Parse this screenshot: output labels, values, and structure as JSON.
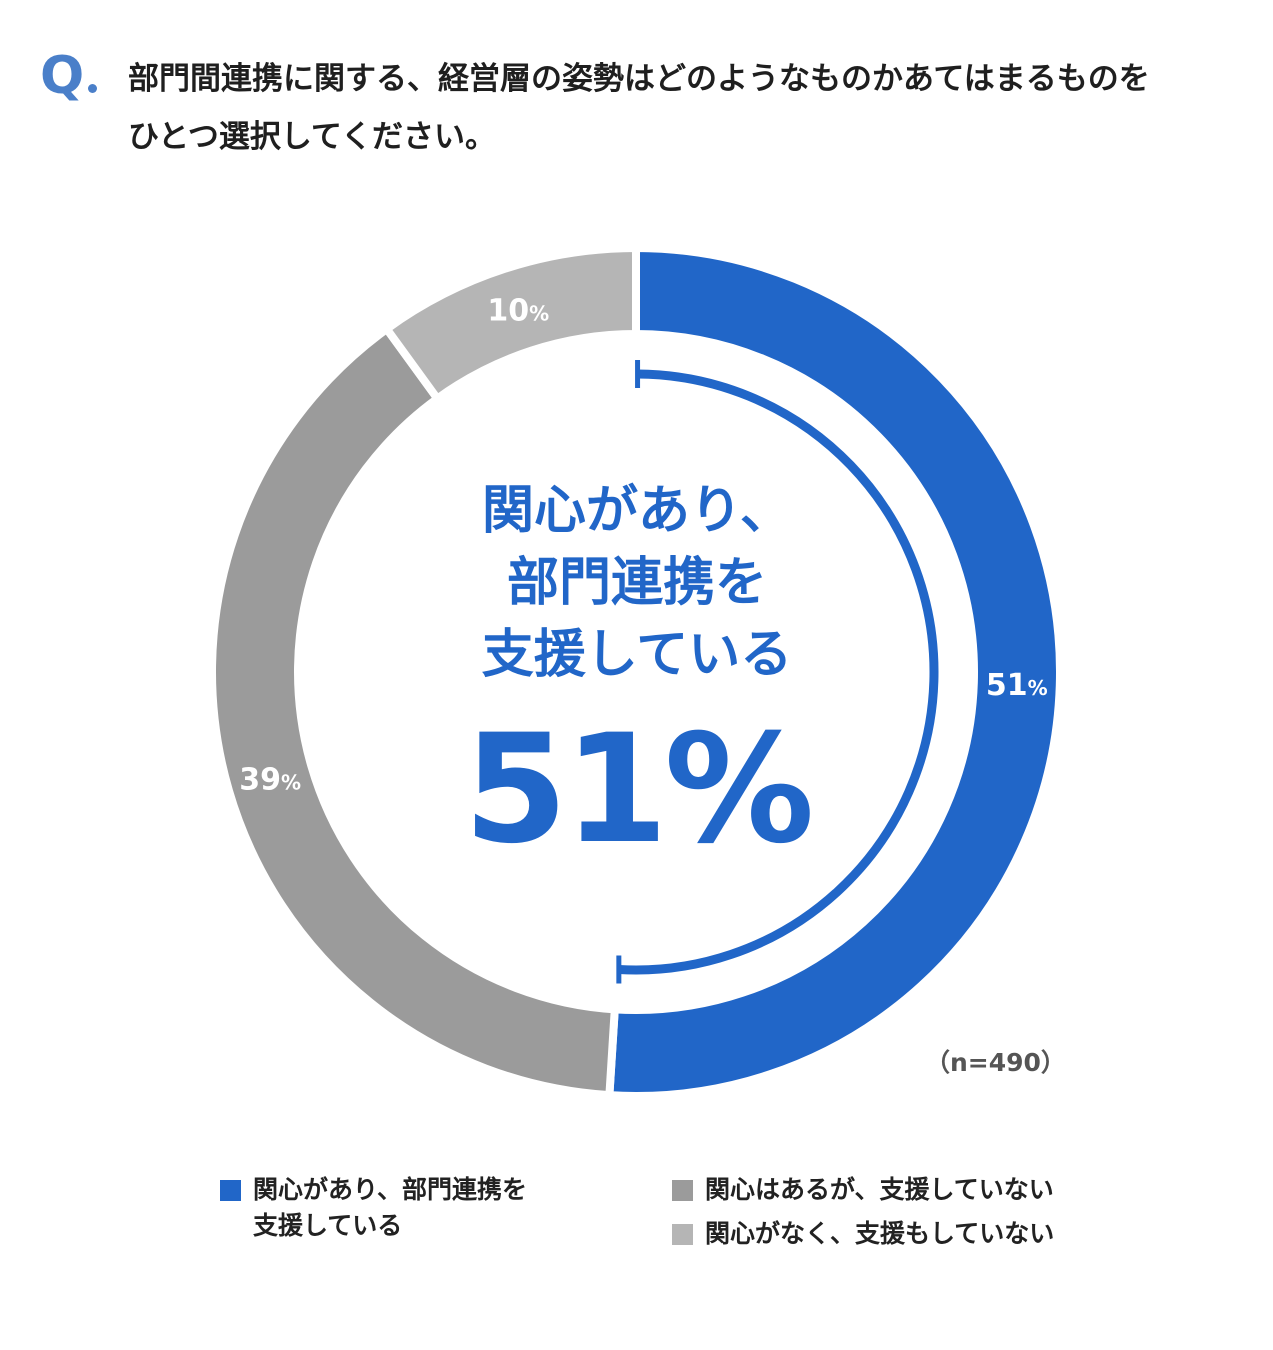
{
  "question": {
    "mark": "Q",
    "line1": "部門間連携に関する、経営層の姿勢はどのようなものかあてはまるものを",
    "line2": "ひとつ選択してください。"
  },
  "center": {
    "line1": "関心があり、",
    "line2": "部門連携を",
    "line3": "支援している",
    "value": "51%"
  },
  "sample_size": "（n=490）",
  "chart_data": {
    "type": "pie",
    "variant": "donut",
    "categories": [
      "関心があり、部門連携を支援している",
      "関心はあるが、支援していない",
      "関心がなく、支援もしていない"
    ],
    "values": [
      51,
      39,
      10
    ],
    "unit": "%",
    "colors": [
      "#2166c8",
      "#9b9b9b",
      "#b5b5b5"
    ],
    "data_labels": [
      "51%",
      "39%",
      "10%"
    ],
    "legend_placement": "bottom"
  },
  "legend": [
    {
      "label": "関心があり、部門連携を\n支援している",
      "color": "#2166c8"
    },
    {
      "label": "関心はあるが、支援していない",
      "color": "#9b9b9b"
    },
    {
      "label": "関心がなく、支援もしていない",
      "color": "#b5b5b5"
    }
  ]
}
